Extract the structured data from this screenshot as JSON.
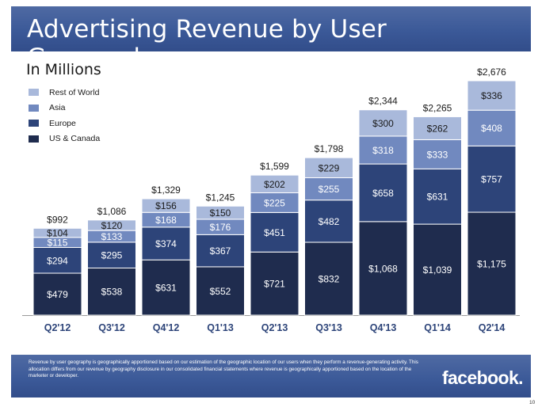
{
  "header": {
    "title": "Advertising Revenue by User Geography"
  },
  "subtitle": "In Millions",
  "legend": [
    {
      "label": "Rest of World",
      "color": "#a9b9db"
    },
    {
      "label": "Asia",
      "color": "#7189bf"
    },
    {
      "label": "Europe",
      "color": "#2d4479"
    },
    {
      "label": "US & Canada",
      "color": "#1f2c4e"
    }
  ],
  "chart_data": {
    "type": "bar",
    "stacked": true,
    "categories": [
      "Q2'12",
      "Q3'12",
      "Q4'12",
      "Q1'13",
      "Q2'13",
      "Q3'13",
      "Q4'13",
      "Q1'14",
      "Q2'14"
    ],
    "series": [
      {
        "name": "US & Canada",
        "color": "#1f2c4e",
        "values": [
          479,
          538,
          631,
          552,
          721,
          832,
          1068,
          1039,
          1175
        ]
      },
      {
        "name": "Europe",
        "color": "#2d4479",
        "values": [
          294,
          295,
          374,
          367,
          451,
          482,
          658,
          631,
          757
        ]
      },
      {
        "name": "Asia",
        "color": "#7189bf",
        "values": [
          115,
          133,
          168,
          176,
          225,
          255,
          318,
          333,
          408
        ]
      },
      {
        "name": "Rest of World",
        "color": "#a9b9db",
        "values": [
          104,
          120,
          156,
          150,
          202,
          229,
          300,
          262,
          336
        ]
      }
    ],
    "series_labels": [
      [
        "$479",
        "$538",
        "$631",
        "$552",
        "$721",
        "$832",
        "$1,068",
        "$1,039",
        "$1,175"
      ],
      [
        "$294",
        "$295",
        "$374",
        "$367",
        "$451",
        "$482",
        "$658",
        "$631",
        "$757"
      ],
      [
        "$115",
        "$133",
        "$168",
        "$176",
        "$225",
        "$255",
        "$318",
        "$333",
        "$408"
      ],
      [
        "$104",
        "$120",
        "$156",
        "$150",
        "$202",
        "$229",
        "$300",
        "$262",
        "$336"
      ]
    ],
    "totals": [
      992,
      1086,
      1329,
      1245,
      1599,
      1798,
      2344,
      2265,
      2676
    ],
    "total_labels": [
      "$992",
      "$1,086",
      "$1,329",
      "$1,245",
      "$1,599",
      "$1,798",
      "$2,344",
      "$2,265",
      "$2,676"
    ],
    "ylim": [
      0,
      2676
    ],
    "grid": false,
    "legend_position": "top-left"
  },
  "footer": {
    "footnote": "Revenue by user geography is geographically apportioned based on our estimation of the geographic location of our users when they perform a revenue-generating activity. This allocation differs from our revenue by geography disclosure in our consolidated financial statements where revenue is geographically apportioned based on the location of the marketer or developer.",
    "brand": "facebook.",
    "page_number": "10"
  }
}
